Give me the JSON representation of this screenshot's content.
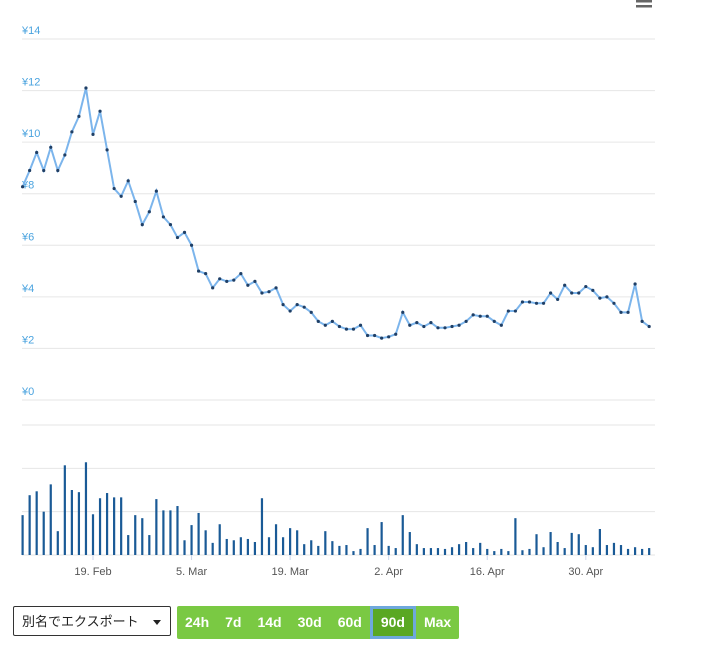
{
  "chart_data": {
    "type": "line",
    "categories": [
      null,
      null,
      null,
      null,
      null,
      null,
      null,
      null,
      null,
      null,
      "19. Feb",
      null,
      null,
      null,
      null,
      null,
      null,
      null,
      null,
      null,
      null,
      null,
      null,
      null,
      "5. Mar",
      null,
      null,
      null,
      null,
      null,
      null,
      null,
      null,
      null,
      null,
      null,
      null,
      null,
      "19. Mar",
      null,
      null,
      null,
      null,
      null,
      null,
      null,
      null,
      null,
      null,
      null,
      null,
      null,
      "2. Apr",
      null,
      null,
      null,
      null,
      null,
      null,
      null,
      null,
      null,
      null,
      null,
      null,
      null,
      "16. Apr",
      null,
      null,
      null,
      null,
      null,
      null,
      null,
      null,
      null,
      null,
      null,
      null,
      null,
      "30. Apr",
      null,
      null,
      null,
      null,
      null,
      null,
      null,
      null,
      null
    ],
    "series": [
      {
        "color": "#7cb5ec",
        "values": [
          8.27,
          8.9,
          9.6,
          8.9,
          9.8,
          8.9,
          9.5,
          10.4,
          11.0,
          12.1,
          10.3,
          11.2,
          9.7,
          8.2,
          7.9,
          8.5,
          7.7,
          6.8,
          7.3,
          8.1,
          7.1,
          6.8,
          6.3,
          6.5,
          6.0,
          5.0,
          4.9,
          4.35,
          4.7,
          4.6,
          4.65,
          4.9,
          4.45,
          4.6,
          4.15,
          4.2,
          4.35,
          3.7,
          3.45,
          3.7,
          3.6,
          3.4,
          3.05,
          2.9,
          3.05,
          2.85,
          2.75,
          2.75,
          2.9,
          2.5,
          2.5,
          2.4,
          2.45,
          2.55,
          3.4,
          2.9,
          3.0,
          2.85,
          3.0,
          2.8,
          2.8,
          2.85,
          2.9,
          3.05,
          3.3,
          3.25,
          3.25,
          3.05,
          2.9,
          3.45,
          3.45,
          3.8,
          3.8,
          3.75,
          3.75,
          4.15,
          3.9,
          4.45,
          4.15,
          4.15,
          4.4,
          4.25,
          3.95,
          4.0,
          3.75,
          3.4,
          3.4,
          4.5,
          3.05,
          2.85
        ]
      },
      {
        "color": "#1a5a96",
        "type": "bar",
        "axis": "y2",
        "values": [
          0.92,
          1.38,
          1.47,
          1.0,
          1.63,
          0.55,
          2.07,
          1.5,
          1.45,
          2.14,
          0.94,
          1.31,
          1.43,
          1.33,
          1.33,
          0.46,
          0.92,
          0.85,
          0.46,
          1.29,
          1.03,
          1.03,
          1.13,
          0.34,
          0.69,
          0.97,
          0.57,
          0.28,
          0.71,
          0.37,
          0.34,
          0.41,
          0.37,
          0.3,
          1.31,
          0.41,
          0.71,
          0.41,
          0.62,
          0.57,
          0.25,
          0.34,
          0.21,
          0.55,
          0.32,
          0.21,
          0.23,
          0.09,
          0.14,
          0.62,
          0.23,
          0.76,
          0.21,
          0.16,
          0.92,
          0.53,
          0.25,
          0.16,
          0.16,
          0.16,
          0.14,
          0.18,
          0.25,
          0.3,
          0.16,
          0.28,
          0.14,
          0.09,
          0.14,
          0.09,
          0.85,
          0.11,
          0.14,
          0.48,
          0.18,
          0.53,
          0.3,
          0.16,
          0.51,
          0.48,
          0.23,
          0.18,
          0.6,
          0.23,
          0.28,
          0.23,
          0.14,
          0.18,
          0.14,
          0.16
        ]
      }
    ],
    "ylim": [
      0,
      14
    ],
    "yticks": [
      {
        "value": 0,
        "label": "¥0"
      },
      {
        "value": 2,
        "label": "¥2"
      },
      {
        "value": 4,
        "label": "¥4"
      },
      {
        "value": 6,
        "label": "¥6"
      },
      {
        "value": 8,
        "label": "¥8"
      },
      {
        "value": 10,
        "label": "¥10"
      },
      {
        "value": 12,
        "label": "¥12"
      },
      {
        "value": 14,
        "label": "¥14"
      }
    ],
    "y2lim": [
      0,
      3
    ],
    "y2grid": [
      0,
      1,
      2,
      3
    ],
    "grid": true
  },
  "controls": {
    "export_label": "別名でエクスポート",
    "ranges": [
      "24h",
      "7d",
      "14d",
      "30d",
      "60d",
      "90d",
      "Max"
    ],
    "selected": 5
  }
}
